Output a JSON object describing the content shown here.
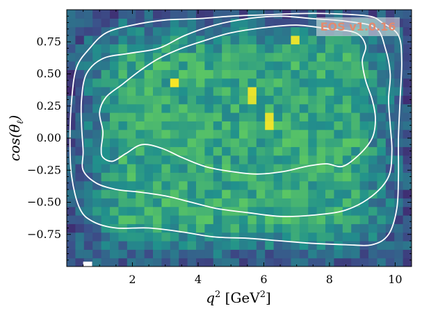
{
  "chart_data": {
    "type": "heatmap",
    "title": "",
    "xlabel": {
      "base": "q",
      "sup": "2",
      "unit_open": " [GeV",
      "unit_sup": "2",
      "unit_close": "]"
    },
    "ylabel": {
      "text": "cos(θ",
      "sub": "ℓ",
      "close": ")"
    },
    "xlim": [
      0.0,
      10.5
    ],
    "ylim": [
      -1.0,
      1.0
    ],
    "xticks": [
      2,
      4,
      6,
      8,
      10
    ],
    "xtick_labels": [
      "2",
      "4",
      "6",
      "8",
      "10"
    ],
    "yticks": [
      -0.75,
      -0.5,
      -0.25,
      0.0,
      0.25,
      0.5,
      0.75
    ],
    "ytick_labels": [
      "−0.75",
      "−0.50",
      "−0.25",
      "0.00",
      "0.25",
      "0.50",
      "0.75"
    ],
    "grid": false,
    "colormap": "viridis",
    "bins": {
      "nx": 40,
      "ny": 30
    },
    "description": "2D histogram of sample density over q^2 and cos(theta_l): low density near the plot edges, roughly uniform high density across the interior, a few bright outlier bins.",
    "hot_bins": [
      {
        "x": 6.2,
        "y": 0.13
      },
      {
        "x": 5.7,
        "y": 0.33
      },
      {
        "x": 3.3,
        "y": 0.43
      },
      {
        "x": 7.0,
        "y": 0.75
      }
    ],
    "contours": [
      {
        "level": "inner",
        "points": [
          [
            1.1,
            -0.15
          ],
          [
            1.4,
            -0.18
          ],
          [
            1.8,
            -0.12
          ],
          [
            2.3,
            -0.05
          ],
          [
            2.9,
            -0.08
          ],
          [
            3.5,
            -0.15
          ],
          [
            4.2,
            -0.22
          ],
          [
            5.0,
            -0.26
          ],
          [
            5.8,
            -0.28
          ],
          [
            6.6,
            -0.26
          ],
          [
            7.3,
            -0.22
          ],
          [
            7.9,
            -0.2
          ],
          [
            8.4,
            -0.22
          ],
          [
            8.9,
            -0.13
          ],
          [
            9.3,
            0.0
          ],
          [
            9.4,
            0.15
          ],
          [
            9.3,
            0.3
          ],
          [
            9.1,
            0.45
          ],
          [
            9.0,
            0.6
          ],
          [
            9.1,
            0.72
          ],
          [
            8.8,
            0.82
          ],
          [
            8.0,
            0.85
          ],
          [
            7.0,
            0.88
          ],
          [
            6.0,
            0.86
          ],
          [
            5.0,
            0.82
          ],
          [
            4.2,
            0.76
          ],
          [
            3.5,
            0.7
          ],
          [
            2.8,
            0.62
          ],
          [
            2.2,
            0.52
          ],
          [
            1.7,
            0.42
          ],
          [
            1.2,
            0.32
          ],
          [
            1.0,
            0.2
          ],
          [
            1.1,
            0.05
          ],
          [
            1.05,
            -0.08
          ],
          [
            1.1,
            -0.15
          ]
        ]
      },
      {
        "level": "middle",
        "points": [
          [
            0.5,
            -0.25
          ],
          [
            0.9,
            -0.35
          ],
          [
            1.5,
            -0.4
          ],
          [
            2.2,
            -0.42
          ],
          [
            3.0,
            -0.45
          ],
          [
            3.8,
            -0.5
          ],
          [
            4.6,
            -0.55
          ],
          [
            5.5,
            -0.58
          ],
          [
            6.5,
            -0.61
          ],
          [
            7.5,
            -0.6
          ],
          [
            8.5,
            -0.56
          ],
          [
            9.3,
            -0.45
          ],
          [
            9.8,
            -0.3
          ],
          [
            9.9,
            -0.1
          ],
          [
            9.85,
            0.1
          ],
          [
            9.8,
            0.3
          ],
          [
            9.85,
            0.5
          ],
          [
            9.7,
            0.7
          ],
          [
            9.4,
            0.86
          ],
          [
            8.5,
            0.91
          ],
          [
            7.5,
            0.93
          ],
          [
            6.5,
            0.95
          ],
          [
            5.5,
            0.93
          ],
          [
            4.5,
            0.88
          ],
          [
            3.6,
            0.8
          ],
          [
            2.8,
            0.7
          ],
          [
            1.9,
            0.66
          ],
          [
            1.1,
            0.62
          ],
          [
            0.6,
            0.5
          ],
          [
            0.45,
            0.3
          ],
          [
            0.45,
            0.1
          ],
          [
            0.5,
            -0.1
          ],
          [
            0.5,
            -0.25
          ]
        ]
      },
      {
        "level": "outer",
        "points": [
          [
            0.15,
            -0.3
          ],
          [
            0.4,
            -0.55
          ],
          [
            0.8,
            -0.65
          ],
          [
            1.5,
            -0.7
          ],
          [
            2.5,
            -0.7
          ],
          [
            3.5,
            -0.73
          ],
          [
            4.5,
            -0.77
          ],
          [
            5.5,
            -0.78
          ],
          [
            6.5,
            -0.8
          ],
          [
            7.5,
            -0.82
          ],
          [
            8.5,
            -0.83
          ],
          [
            9.3,
            -0.83
          ],
          [
            9.8,
            -0.75
          ],
          [
            10.05,
            -0.55
          ],
          [
            10.1,
            -0.3
          ],
          [
            10.1,
            0.0
          ],
          [
            10.15,
            0.3
          ],
          [
            10.2,
            0.6
          ],
          [
            10.1,
            0.8
          ],
          [
            9.6,
            0.9
          ],
          [
            9.2,
            0.95
          ],
          [
            8.0,
            0.97
          ],
          [
            7.0,
            0.97
          ],
          [
            6.0,
            0.96
          ],
          [
            5.0,
            0.95
          ],
          [
            4.0,
            0.93
          ],
          [
            3.0,
            0.92
          ],
          [
            2.0,
            0.88
          ],
          [
            1.2,
            0.82
          ],
          [
            0.7,
            0.7
          ],
          [
            0.3,
            0.55
          ],
          [
            0.15,
            0.3
          ],
          [
            0.1,
            0.0
          ],
          [
            0.15,
            -0.3
          ]
        ]
      }
    ],
    "watermark": {
      "text": "EOS v1.0.16",
      "text_color": "#e38a6f",
      "box_color": "#e8e8e8"
    },
    "frame_color": "#000000",
    "contour_color": "#ffffff"
  }
}
